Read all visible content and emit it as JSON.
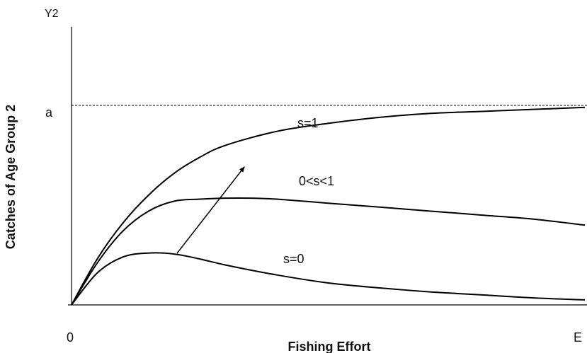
{
  "chart_data": {
    "type": "line",
    "xlabel": "Fishing Effort",
    "ylabel": "Catches of Age Group 2",
    "x_axis_symbol": "E",
    "y_axis_symbol": "Y2",
    "origin_label": "0",
    "asymptote": {
      "label": "a",
      "value": 1.0,
      "style": "dashed"
    },
    "xlim": [
      0,
      1
    ],
    "ylim": [
      0,
      1.4
    ],
    "arrow": {
      "from_series": "s=0",
      "to_series": "s=1"
    },
    "series": [
      {
        "name": "s=1",
        "x": [
          0,
          0.05,
          0.1,
          0.15,
          0.2,
          0.25,
          0.3,
          0.4,
          0.5,
          0.6,
          0.7,
          0.8,
          0.9,
          1.0
        ],
        "y": [
          0,
          0.23,
          0.41,
          0.55,
          0.66,
          0.74,
          0.8,
          0.87,
          0.91,
          0.94,
          0.96,
          0.97,
          0.98,
          0.99
        ]
      },
      {
        "name": "0<s<1",
        "x": [
          0,
          0.05,
          0.1,
          0.15,
          0.2,
          0.25,
          0.3,
          0.35,
          0.4,
          0.5,
          0.6,
          0.7,
          0.8,
          0.9,
          1.0
        ],
        "y": [
          0,
          0.21,
          0.37,
          0.47,
          0.52,
          0.53,
          0.535,
          0.535,
          0.53,
          0.51,
          0.49,
          0.47,
          0.45,
          0.43,
          0.4
        ]
      },
      {
        "name": "s=0",
        "x": [
          0,
          0.05,
          0.1,
          0.15,
          0.2,
          0.25,
          0.3,
          0.4,
          0.5,
          0.6,
          0.7,
          0.8,
          0.9,
          1.0
        ],
        "y": [
          0,
          0.16,
          0.24,
          0.26,
          0.255,
          0.23,
          0.2,
          0.15,
          0.11,
          0.085,
          0.065,
          0.05,
          0.035,
          0.025
        ]
      }
    ]
  }
}
